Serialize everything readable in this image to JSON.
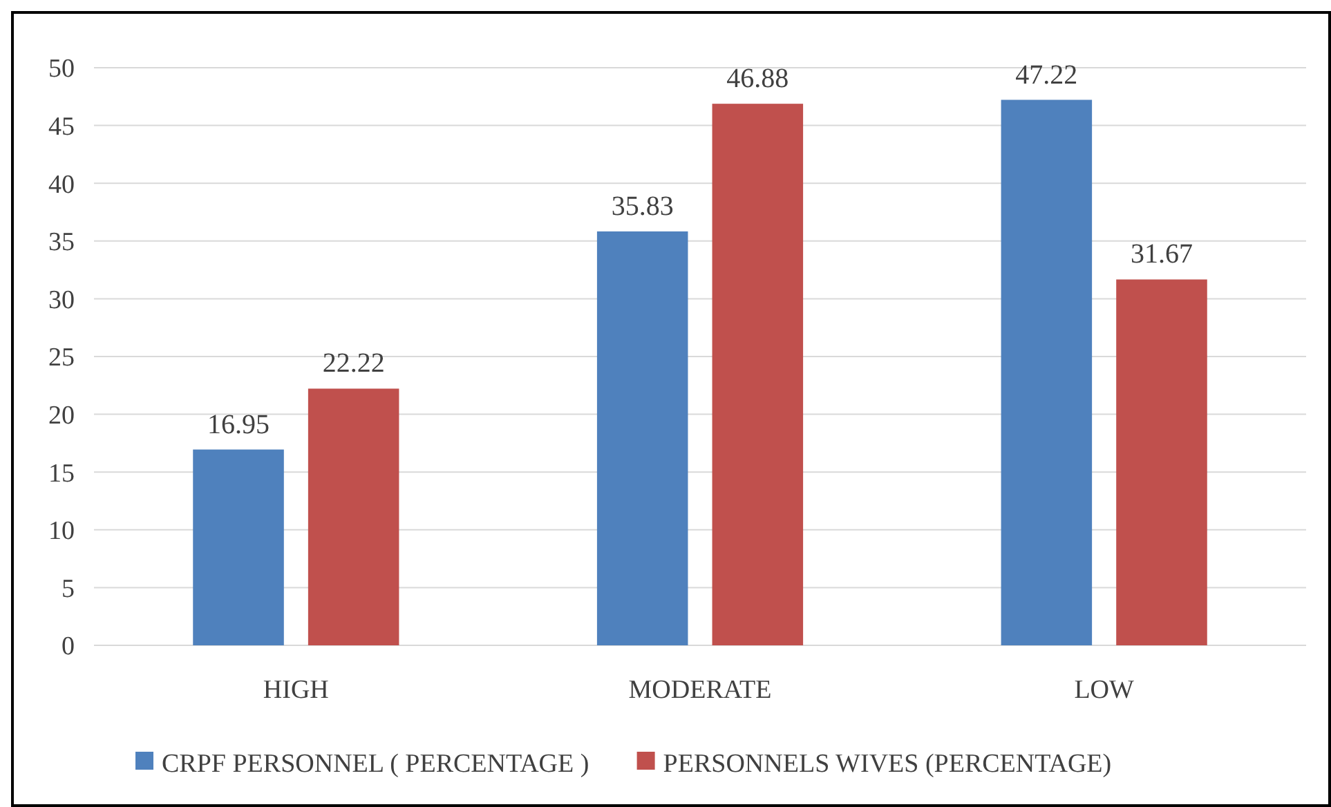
{
  "chart_data": {
    "type": "bar",
    "categories": [
      "HIGH",
      "MODERATE",
      "LOW"
    ],
    "series": [
      {
        "name": "CRPF PERSONNEL ( PERCENTAGE )",
        "color": "#4f81bd",
        "values": [
          16.95,
          35.83,
          47.22
        ]
      },
      {
        "name": "PERSONNELS WIVES (PERCENTAGE)",
        "color": "#c0504d",
        "values": [
          22.22,
          46.88,
          31.67
        ]
      }
    ],
    "ylim": [
      0,
      50
    ],
    "yticks": [
      0,
      5,
      10,
      15,
      20,
      25,
      30,
      35,
      40,
      45,
      50
    ],
    "grid": "y",
    "legend": "bottom",
    "data_labels": true
  }
}
